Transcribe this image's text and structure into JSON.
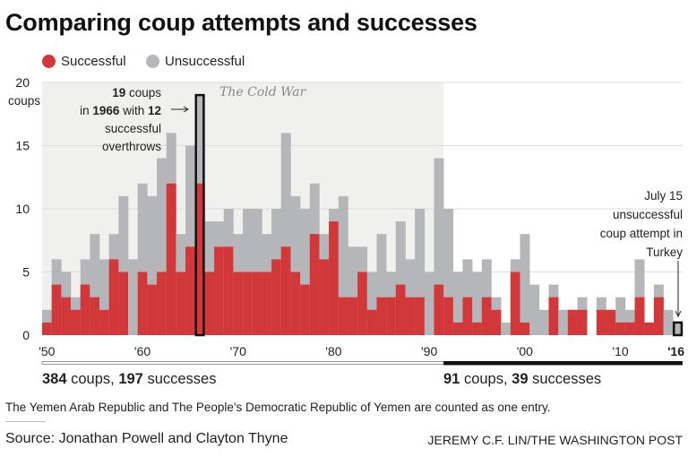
{
  "title": "Comparing coup attempts and successes",
  "legend": [
    {
      "label": "Successful",
      "color": "#d2383a"
    },
    {
      "label": "Unsuccessful",
      "color": "#b5b6b9"
    }
  ],
  "annotations": {
    "cold_war": "The Cold War",
    "peak": {
      "n1": "19",
      "t1": " coups",
      "t2": "in ",
      "n2": "1966",
      "t3": " with ",
      "n3": "12",
      "t4": "successful",
      "t5": "overthrows"
    },
    "turkey": [
      "July 15",
      "unsuccessful",
      "coup attempt in",
      "Turkey"
    ]
  },
  "periods": [
    {
      "coups": "384",
      "coups_label": " coups, ",
      "successes": "197",
      "successes_label": " successes"
    },
    {
      "coups": "91",
      "coups_label": " coups, ",
      "successes": "39",
      "successes_label": " successes"
    }
  ],
  "footnote": "The Yemen Arab Republic and The People's Democratic Republic of Yemen are counted as one entry.",
  "source": "Source: Jonathan Powell and Clayton Thyne",
  "credit": "JEREMY C.F. LIN/THE WASHINGTON POST",
  "chart_data": {
    "type": "bar",
    "stacked": true,
    "title": "Comparing coup attempts and successes",
    "ylabel": "coups",
    "ylim": [
      0,
      20
    ],
    "yticks": [
      "0",
      "5",
      "10",
      "15",
      "20"
    ],
    "xticks": [
      "'50",
      "'60",
      "'70",
      "'80",
      "'90",
      "'00",
      "'10",
      "'16"
    ],
    "grid": true,
    "legend_placement": "top-left",
    "shaded_period": {
      "label": "The Cold War",
      "from": 1950,
      "to": 1991
    },
    "highlighted_years": [
      1966,
      2016
    ],
    "years": [
      1950,
      1951,
      1952,
      1953,
      1954,
      1955,
      1956,
      1957,
      1958,
      1959,
      1960,
      1961,
      1962,
      1963,
      1964,
      1965,
      1966,
      1967,
      1968,
      1969,
      1970,
      1971,
      1972,
      1973,
      1974,
      1975,
      1976,
      1977,
      1978,
      1979,
      1980,
      1981,
      1982,
      1983,
      1984,
      1985,
      1986,
      1987,
      1988,
      1989,
      1990,
      1991,
      1992,
      1993,
      1994,
      1995,
      1996,
      1997,
      1998,
      1999,
      2000,
      2001,
      2002,
      2003,
      2004,
      2005,
      2006,
      2007,
      2008,
      2009,
      2010,
      2011,
      2012,
      2013,
      2014,
      2015,
      2016
    ],
    "series": [
      {
        "name": "Successful",
        "values": [
          1,
          4,
          3,
          2,
          4,
          3,
          2,
          6,
          5,
          0,
          5,
          4,
          5,
          12,
          5,
          7,
          12,
          5,
          7,
          7,
          5,
          5,
          5,
          5,
          6,
          7,
          5,
          4,
          8,
          6,
          9,
          3,
          3,
          5,
          2,
          3,
          3,
          4,
          3,
          3,
          0,
          4,
          3,
          1,
          3,
          1,
          3,
          2,
          0,
          5,
          1,
          0,
          0,
          3,
          0,
          2,
          2,
          0,
          2,
          2,
          1,
          1,
          3,
          1,
          3,
          0,
          0
        ]
      },
      {
        "name": "Unsuccessful",
        "values": [
          1,
          2,
          2,
          1,
          2,
          5,
          4,
          2,
          6,
          6,
          7,
          7,
          9,
          4,
          3,
          8,
          7,
          4,
          2,
          3,
          3,
          5,
          5,
          3,
          4,
          9,
          6,
          6,
          4,
          2,
          1,
          8,
          4,
          2,
          3,
          5,
          2,
          5,
          3,
          7,
          5,
          10,
          7,
          4,
          3,
          4,
          3,
          1,
          1,
          1,
          7,
          4,
          2,
          1,
          2,
          0,
          1,
          0,
          1,
          0,
          2,
          1,
          3,
          0,
          1,
          2,
          1
        ]
      }
    ],
    "totals": [
      2,
      6,
      5,
      3,
      6,
      8,
      6,
      8,
      11,
      6,
      12,
      11,
      14,
      16,
      8,
      15,
      19,
      9,
      9,
      10,
      8,
      10,
      10,
      8,
      10,
      16,
      11,
      10,
      12,
      8,
      10,
      11,
      7,
      7,
      5,
      8,
      5,
      9,
      6,
      10,
      5,
      14,
      10,
      5,
      6,
      5,
      6,
      3,
      1,
      6,
      8,
      4,
      2,
      4,
      2,
      2,
      3,
      0,
      3,
      2,
      3,
      2,
      6,
      1,
      4,
      2,
      1
    ]
  }
}
